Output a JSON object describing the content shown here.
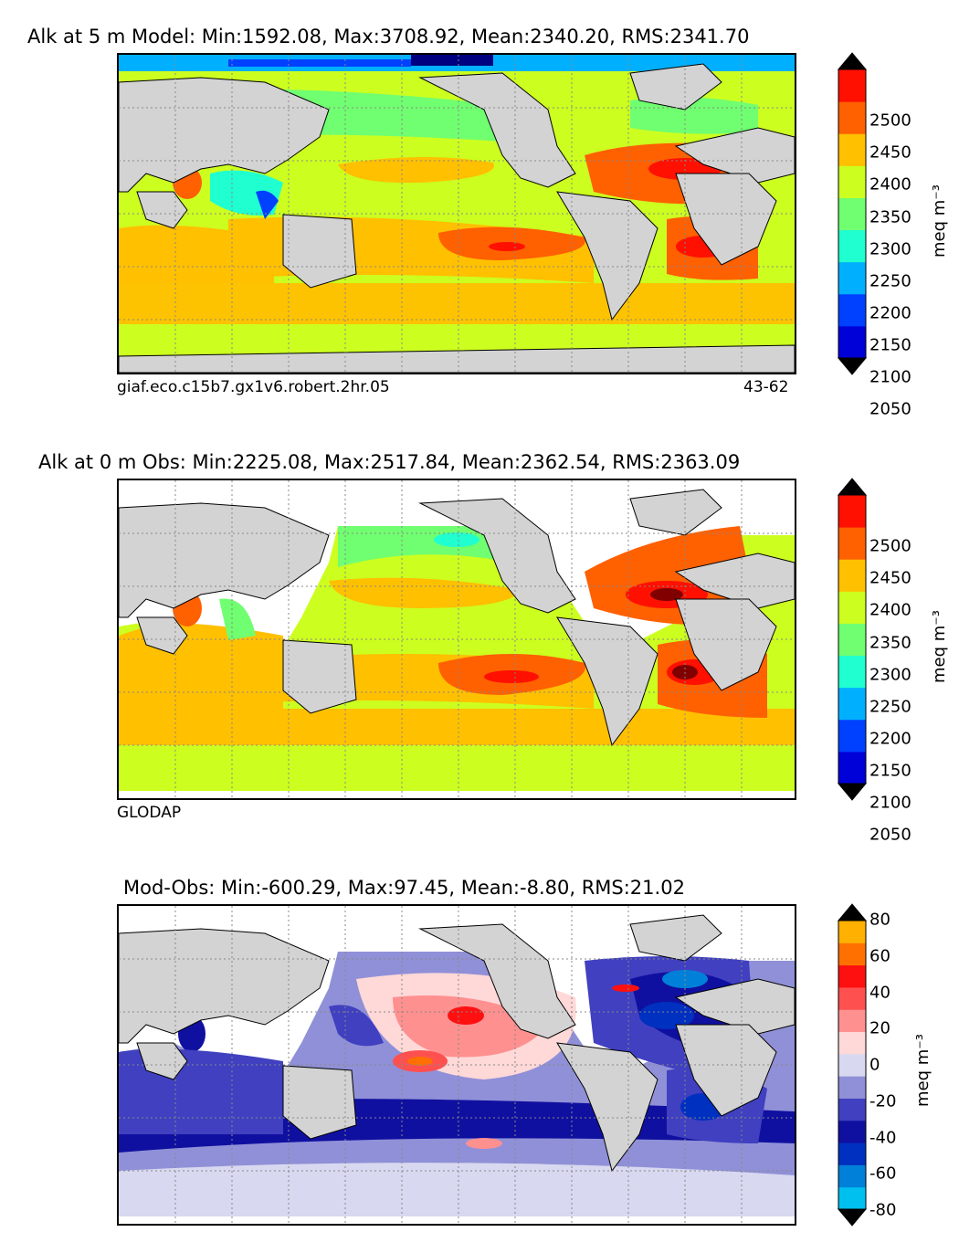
{
  "panels": [
    {
      "title": "Alk at 5 m Model: Min:1592.08, Max:3708.92, Mean:2340.20, RMS:2341.70",
      "left_note": "giaf.eco.c15b7.gx1v6.robert.2hr.05",
      "right_note": "43-62",
      "colorbar": {
        "ticks": [
          "2500",
          "2450",
          "2400",
          "2350",
          "2300",
          "2250",
          "2200",
          "2150",
          "2100",
          "2050"
        ],
        "unit": "meq m$^{-3}$",
        "unit_display": "meq m⁻³",
        "colors": [
          "#000080",
          "#0000d8",
          "#0040ff",
          "#00b0ff",
          "#20ffd0",
          "#70ff70",
          "#ccff20",
          "#ffc000",
          "#ff6000",
          "#ff1000",
          "#800000"
        ]
      }
    },
    {
      "title": "Alk at 0 m Obs: Min:2225.08, Max:2517.84, Mean:2362.54, RMS:2363.09",
      "left_note": "GLODAP",
      "right_note": "",
      "colorbar": {
        "ticks": [
          "2500",
          "2450",
          "2400",
          "2350",
          "2300",
          "2250",
          "2200",
          "2150",
          "2100",
          "2050"
        ],
        "unit_display": "meq m⁻³",
        "colors": [
          "#000080",
          "#0000d8",
          "#0040ff",
          "#00b0ff",
          "#20ffd0",
          "#70ff70",
          "#ccff20",
          "#ffc000",
          "#ff6000",
          "#ff1000",
          "#800000"
        ]
      }
    },
    {
      "title": "Mod-Obs: Min:-600.29, Max:97.45, Mean:-8.80, RMS:21.02",
      "left_note": "",
      "right_note": "",
      "colorbar": {
        "ticks": [
          "80",
          "60",
          "40",
          "20",
          "0",
          "-20",
          "-40",
          "-60",
          "-80"
        ],
        "unit_display": "meq m⁻³",
        "colors": [
          "#00ffff",
          "#00c0f0",
          "#0080d8",
          "#0030c0",
          "#1010a0",
          "#4040c0",
          "#9090d8",
          "#d8d8f0",
          "#ffd8d8",
          "#ff9090",
          "#ff5050",
          "#ff1010",
          "#ff7000",
          "#ffb000",
          "#ffff00"
        ]
      }
    }
  ],
  "map_colors": {
    "land": "#d3d3d3",
    "grid": "#888888"
  }
}
